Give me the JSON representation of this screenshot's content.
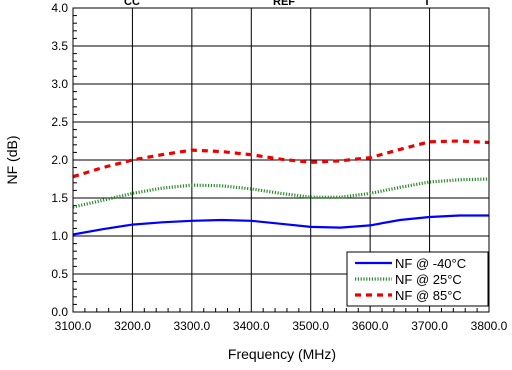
{
  "chart_data": {
    "type": "line",
    "xlabel": "Frequency (MHz)",
    "ylabel": "NF (dB)",
    "xlim": [
      3100,
      3800
    ],
    "ylim": [
      0,
      4
    ],
    "x_ticks": [
      "3100.0",
      "3200.0",
      "3300.0",
      "3400.0",
      "3500.0",
      "3600.0",
      "3700.0",
      "3800.0"
    ],
    "y_ticks": [
      "0.0",
      "0.5",
      "1.0",
      "1.5",
      "2.0",
      "2.5",
      "3.0",
      "3.5",
      "4.0"
    ],
    "grid": true,
    "legend_position": "bottom-right",
    "top_fragments": [
      "CC",
      "REF",
      "T"
    ],
    "series": [
      {
        "name": "NF @ -40°C",
        "color": "#0000ff",
        "style": "solid",
        "x": [
          3100,
          3150,
          3200,
          3250,
          3300,
          3350,
          3400,
          3450,
          3500,
          3550,
          3600,
          3650,
          3700,
          3750,
          3800
        ],
        "y": [
          1.02,
          1.09,
          1.15,
          1.18,
          1.2,
          1.21,
          1.2,
          1.16,
          1.12,
          1.11,
          1.14,
          1.21,
          1.25,
          1.27,
          1.27
        ]
      },
      {
        "name": "NF @ 25°C",
        "color": "#2e8b2e",
        "style": "dotted",
        "x": [
          3100,
          3150,
          3200,
          3250,
          3300,
          3350,
          3400,
          3450,
          3500,
          3550,
          3600,
          3650,
          3700,
          3750,
          3800
        ],
        "y": [
          1.38,
          1.47,
          1.56,
          1.63,
          1.67,
          1.66,
          1.62,
          1.56,
          1.51,
          1.51,
          1.56,
          1.64,
          1.71,
          1.74,
          1.75
        ]
      },
      {
        "name": "NF @ 85°C",
        "color": "#ee0000",
        "style": "dashed",
        "x": [
          3100,
          3150,
          3200,
          3250,
          3300,
          3350,
          3400,
          3450,
          3500,
          3550,
          3600,
          3650,
          3700,
          3750,
          3800
        ],
        "y": [
          1.78,
          1.9,
          2.0,
          2.07,
          2.13,
          2.11,
          2.07,
          2.01,
          1.97,
          1.99,
          2.03,
          2.14,
          2.24,
          2.25,
          2.23
        ]
      }
    ]
  }
}
